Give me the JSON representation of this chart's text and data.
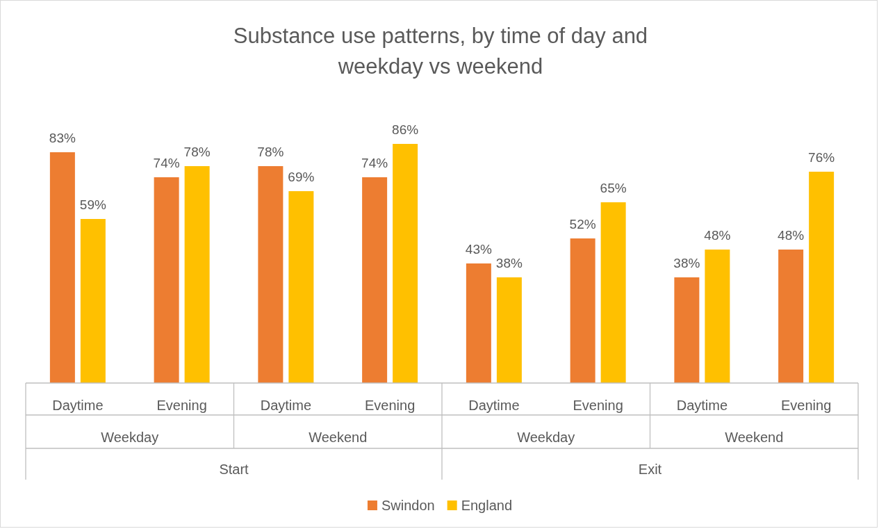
{
  "chart_data": {
    "type": "bar",
    "title": "Substance use patterns, by time of day and weekday vs weekend",
    "categories": [
      "Daytime",
      "Evening",
      "Daytime",
      "Evening",
      "Daytime",
      "Evening",
      "Daytime",
      "Evening"
    ],
    "series": [
      {
        "name": "Swindon",
        "color": "#ed7d31",
        "values": [
          83,
          74,
          78,
          74,
          43,
          52,
          38,
          48
        ],
        "value_labels": [
          "83%",
          "74%",
          "78%",
          "74%",
          "43%",
          "52%",
          "38%",
          "48%"
        ]
      },
      {
        "name": "England",
        "color": "#ffc000",
        "values": [
          59,
          78,
          69,
          86,
          38,
          65,
          48,
          76
        ],
        "value_labels": [
          "59%",
          "78%",
          "69%",
          "86%",
          "38%",
          "65%",
          "48%",
          "76%"
        ]
      }
    ],
    "annotations": [
      "Weekday",
      "Weekend",
      "Weekday",
      "Weekend",
      "Start",
      "Exit"
    ],
    "legend": "bottom"
  }
}
